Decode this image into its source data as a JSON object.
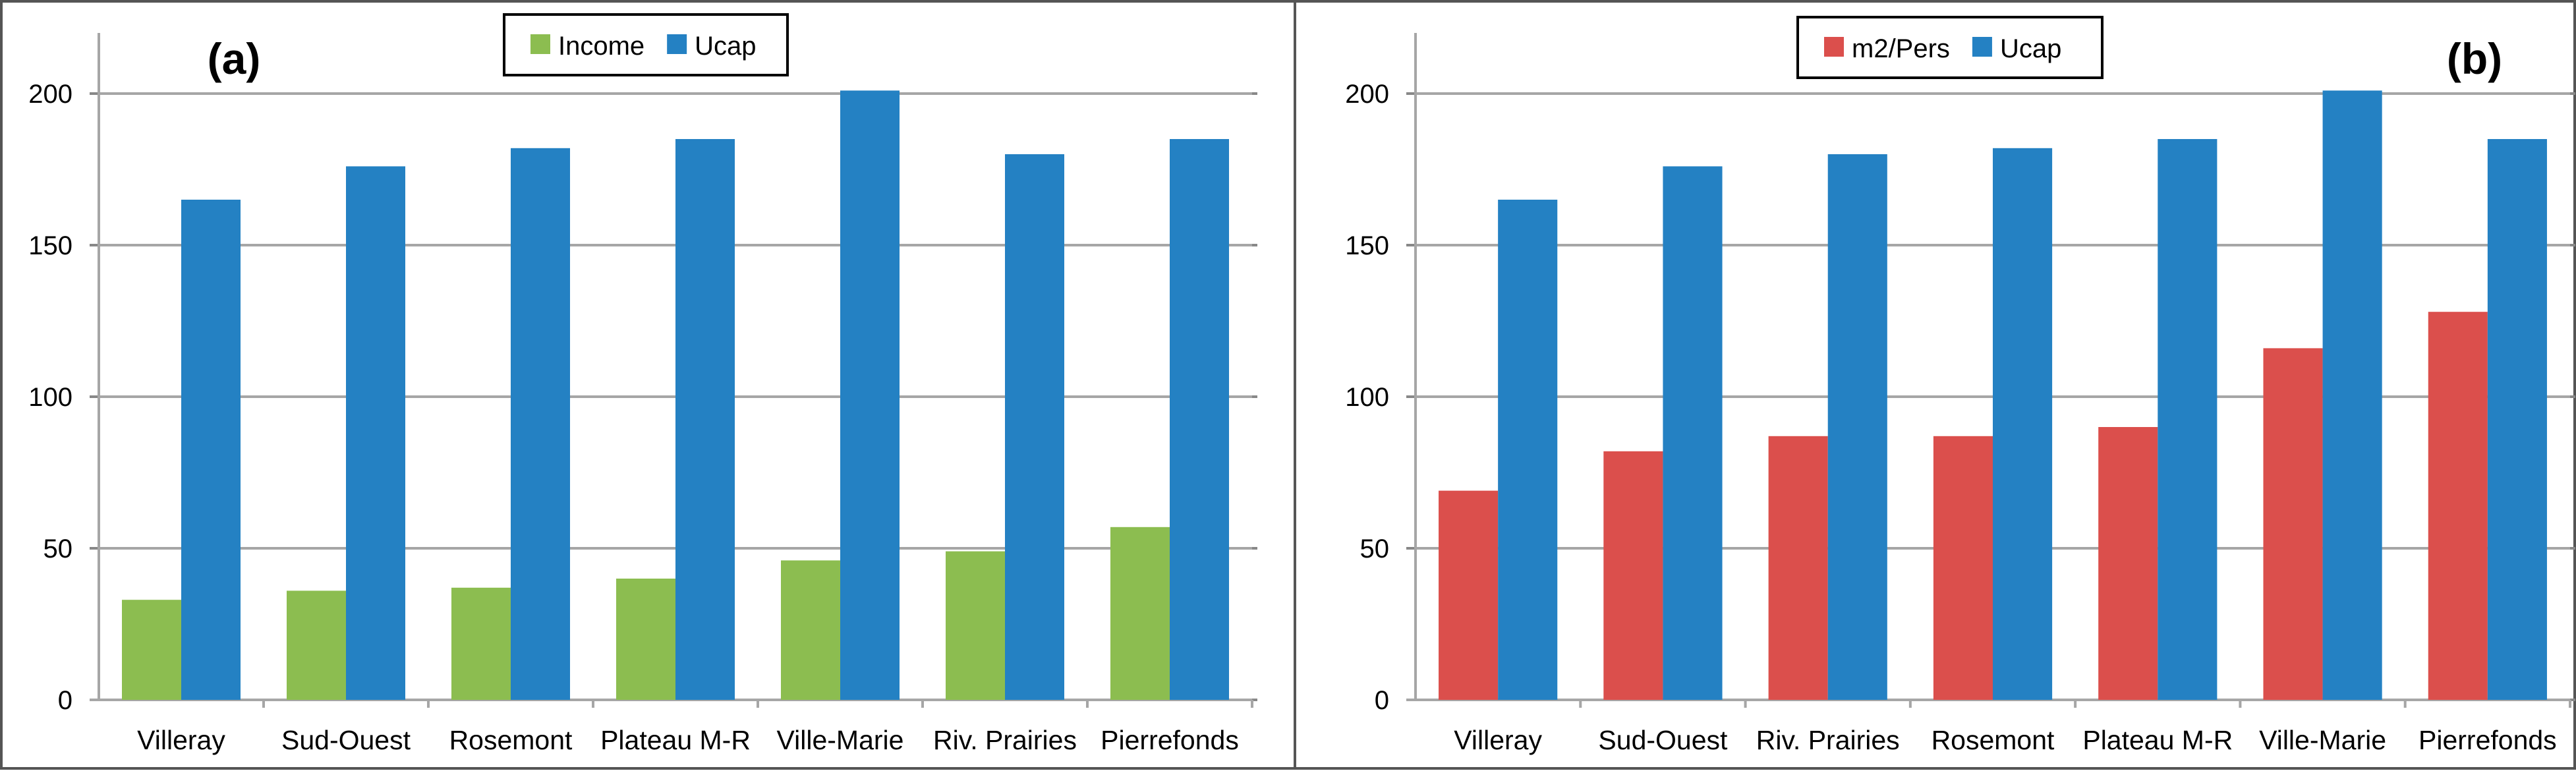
{
  "chart_data": [
    {
      "type": "bar",
      "panel_label": "(a)",
      "categories": [
        "Villeray",
        "Sud-Ouest",
        "Rosemont",
        "Plateau M-R",
        "Ville-Marie",
        "Riv. Prairies",
        "Pierrefonds"
      ],
      "series": [
        {
          "name": "Income",
          "color": "#8cbd50",
          "values": [
            33,
            36,
            37,
            40,
            46,
            49,
            57
          ]
        },
        {
          "name": "Ucap",
          "color": "#2481c3",
          "values": [
            165,
            176,
            182,
            185,
            201,
            180,
            185
          ]
        }
      ],
      "ylim": [
        0,
        220
      ],
      "yticks": [
        0,
        50,
        100,
        150,
        200
      ],
      "legend": "top-center",
      "title": "",
      "xlabel": "",
      "ylabel": ""
    },
    {
      "type": "bar",
      "panel_label": "(b)",
      "categories": [
        "Villeray",
        "Sud-Ouest",
        "Riv. Prairies",
        "Rosemont",
        "Plateau M-R",
        "Ville-Marie",
        "Pierrefonds"
      ],
      "series": [
        {
          "name": "m2/Pers",
          "color": "#db4f4c",
          "values": [
            69,
            82,
            87,
            87,
            90,
            116,
            128
          ]
        },
        {
          "name": "Ucap",
          "color": "#2481c3",
          "values": [
            165,
            176,
            180,
            182,
            185,
            201,
            185
          ]
        }
      ],
      "ylim": [
        0,
        220
      ],
      "yticks": [
        0,
        50,
        100,
        150,
        200
      ],
      "legend": "top-center",
      "title": "",
      "xlabel": "",
      "ylabel": ""
    }
  ]
}
